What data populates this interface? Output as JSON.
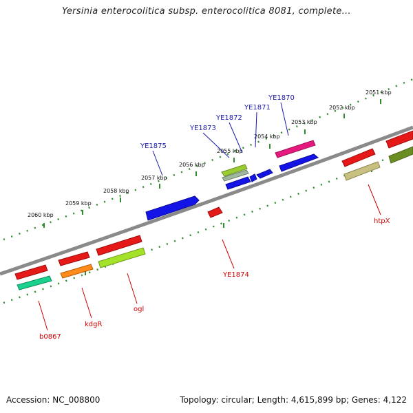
{
  "header": {
    "title": "Yersinia enterocolitica subsp. enterocolitica 8081, complete..."
  },
  "footer": {
    "accession": "Accession: NC_008800",
    "topology": "Topology: circular; Length: 4,615,899 bp; Genes: 4,122"
  },
  "map": {
    "kbp_labels": [
      "2051 kbp",
      "2052 kbp",
      "2053 kbp",
      "2054 kbp",
      "2055 kbp",
      "2056 kbp",
      "2057 kbp",
      "2058 kbp",
      "2059 kbp",
      "2060 kbp"
    ],
    "genes": [
      {
        "label": "YE1870",
        "color": "#1a1aa6"
      },
      {
        "label": "YE1871",
        "color": "#1a1aa6"
      },
      {
        "label": "YE1872",
        "color": "#1a1aa6"
      },
      {
        "label": "YE1873",
        "color": "#1a1aa6"
      },
      {
        "label": "YE1875",
        "color": "#1a1aa6"
      },
      {
        "label": "YE1874",
        "color": "#cc0000"
      },
      {
        "label": "htpX",
        "color": "#cc0000"
      },
      {
        "label": "ogl",
        "color": "#cc0000"
      },
      {
        "label": "kdgR",
        "color": "#cc0000"
      },
      {
        "label": "b0867",
        "color": "#cc0000"
      }
    ],
    "colors": {
      "backbone": "#8a8a8a",
      "tick_track": "#2e8b2e",
      "leader_forward": "#1a1aa6",
      "leader_reverse": "#cc0000"
    }
  }
}
